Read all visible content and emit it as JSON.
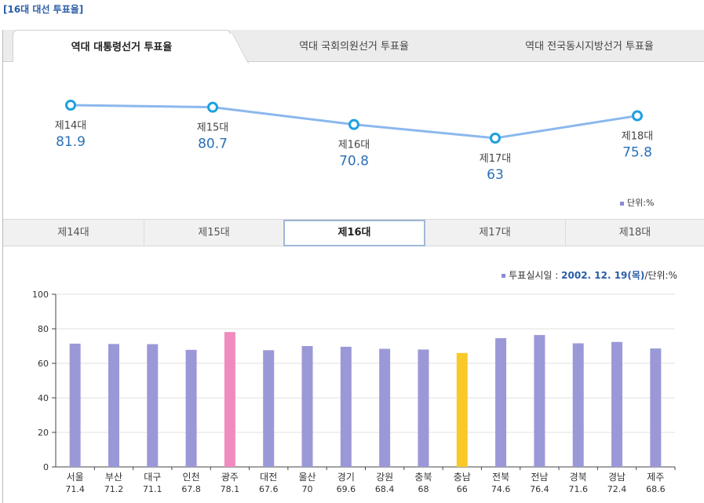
{
  "page_title": "[16대 대선 투표율]",
  "tabs": [
    {
      "label": "역대 대통령선거 투표율",
      "active": true
    },
    {
      "label": "역대 국회의원선거 투표율",
      "active": false
    },
    {
      "label": "역대 전국동시지방선거 투표율",
      "active": false
    }
  ],
  "unit_label": "단위:%",
  "election_tabs": [
    {
      "label": "제14대",
      "active": false
    },
    {
      "label": "제15대",
      "active": false
    },
    {
      "label": "제16대",
      "active": true
    },
    {
      "label": "제17대",
      "active": false
    },
    {
      "label": "제18대",
      "active": false
    }
  ],
  "meta": {
    "date_label": "투표실시일 : ",
    "date": "2002. 12. 19(목)",
    "unit": "/단위:%"
  },
  "chart_data": [
    {
      "type": "line",
      "categories": [
        "제14대",
        "제15대",
        "제16대",
        "제17대",
        "제18대"
      ],
      "values": [
        81.9,
        80.7,
        70.8,
        63,
        75.8
      ],
      "value_labels": [
        "81.9",
        "80.7",
        "70.8",
        "63",
        "75.8"
      ],
      "colors": {
        "line": "#8bb8ee",
        "marker": "#1ea0e0",
        "value": "#2a6fb8"
      }
    },
    {
      "type": "bar",
      "categories": [
        "서울",
        "부산",
        "대구",
        "인천",
        "광주",
        "대전",
        "울산",
        "경기",
        "강원",
        "충북",
        "충남",
        "전북",
        "전남",
        "경북",
        "경남",
        "제주"
      ],
      "values": [
        71.4,
        71.2,
        71.1,
        67.8,
        78.1,
        67.6,
        70,
        69.6,
        68.4,
        68,
        66,
        74.6,
        76.4,
        71.6,
        72.4,
        68.6
      ],
      "value_labels": [
        "71.4",
        "71.2",
        "71.1",
        "67.8",
        "78.1",
        "67.6",
        "70",
        "69.6",
        "68.4",
        "68",
        "66",
        "74.6",
        "76.4",
        "71.6",
        "72.4",
        "68.6"
      ],
      "ylim": [
        0,
        100
      ],
      "yticks": [
        "0",
        "20",
        "40",
        "60",
        "80",
        "100"
      ],
      "grid": true,
      "colors": {
        "default": "#9b98d8",
        "max": "#f08bbd",
        "min": "#f9c92a"
      }
    }
  ]
}
